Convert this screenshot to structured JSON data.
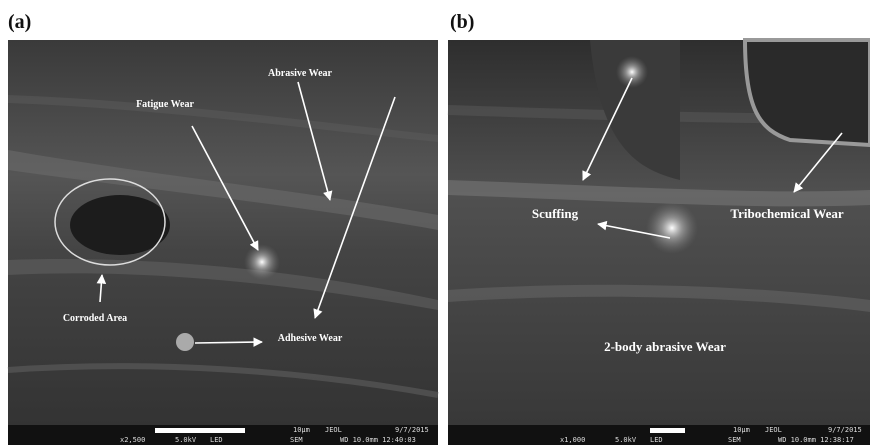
{
  "panels": [
    {
      "label": "(a)",
      "annotations": [
        "Abrasive Wear",
        "Fatigue Wear",
        "Corroded Area",
        "Adhesive Wear"
      ],
      "footer": [
        "x2,500",
        "5.0kV",
        "LED",
        "SEM",
        "WD 10.0mm 12:40:03",
        "10μm",
        "JEOL",
        "9/7/2015"
      ]
    },
    {
      "label": "(b)",
      "annotations": [
        "Scuffing",
        "Tribochemical Wear",
        "2-body abrasive Wear"
      ],
      "footer": [
        "x1,000",
        "5.0kV",
        "LED",
        "SEM",
        "WD 10.0mm 12:38:17",
        "10μm",
        "JEOL",
        "9/7/2015"
      ]
    }
  ]
}
